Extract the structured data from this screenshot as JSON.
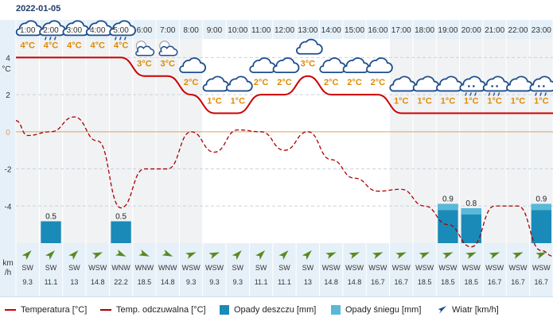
{
  "date": "2022-01-05",
  "hours": [
    "1:00",
    "2:00",
    "3:00",
    "4:00",
    "5:00",
    "6:00",
    "7:00",
    "8:00",
    "9:00",
    "10:00",
    "11:00",
    "12:00",
    "13:00",
    "14:00",
    "15:00",
    "16:00",
    "17:00",
    "18:00",
    "19:00",
    "20:00",
    "21:00",
    "22:00",
    "23:00"
  ],
  "axis": {
    "temp_unit": "°C",
    "temp_ticks": [
      "4",
      "2",
      "0",
      "-2",
      "-4"
    ],
    "wind_unit_top": "km",
    "wind_unit_bottom": "/h"
  },
  "colors": {
    "temperature": "#cc0000",
    "feels_like": "#aa0000",
    "rain": "#1a8ab8",
    "snow": "#5ab8d8",
    "panel": "#e6f0f8",
    "night": "#f0f2f4",
    "zero_line": "#e0a060",
    "temp_label": "#e08a00"
  },
  "chart_data": {
    "type": "line",
    "x": [
      "1:00",
      "2:00",
      "3:00",
      "4:00",
      "5:00",
      "6:00",
      "7:00",
      "8:00",
      "9:00",
      "10:00",
      "11:00",
      "12:00",
      "13:00",
      "14:00",
      "15:00",
      "16:00",
      "17:00",
      "18:00",
      "19:00",
      "20:00",
      "21:00",
      "22:00",
      "23:00"
    ],
    "series": [
      {
        "name": "Temperatura [°C]",
        "values": [
          4,
          4,
          4,
          4,
          4,
          3,
          3,
          2,
          1,
          1,
          2,
          2,
          3,
          2,
          2,
          2,
          1,
          1,
          1,
          1,
          1,
          1,
          1
        ]
      },
      {
        "name": "Temp. odczuwalna [°C]",
        "values": [
          -0.2,
          0,
          0.8,
          -0.5,
          -4.1,
          -2,
          -2,
          0,
          -1.1,
          0.1,
          0,
          -1,
          0,
          -1.5,
          -2.5,
          -3.2,
          -3.1,
          -4,
          -5,
          -6.2,
          -4,
          -4,
          -6.4
        ]
      },
      {
        "name": "Opady deszczu [mm]",
        "values": [
          0,
          0.5,
          0,
          0,
          0.5,
          0,
          0,
          0,
          0,
          0,
          0,
          0,
          0,
          0,
          0,
          0,
          0,
          0,
          0.9,
          0.8,
          0,
          0,
          0.9
        ]
      },
      {
        "name": "Opady śniegu [mm]",
        "values": [
          0,
          0,
          0,
          0,
          0,
          0,
          0,
          0,
          0,
          0,
          0,
          0,
          0,
          0,
          0,
          0,
          0,
          0,
          0.9,
          0.8,
          0,
          0,
          0.9
        ]
      }
    ],
    "ylim": [
      -6,
      5
    ],
    "temp_labels": [
      "4°C",
      "4°C",
      "4°C",
      "4°C",
      "4°C",
      "3°C",
      "3°C",
      "2°C",
      "1°C",
      "1°C",
      "2°C",
      "2°C",
      "3°C",
      "2°C",
      "2°C",
      "2°C",
      "1°C",
      "1°C",
      "1°C",
      "1°C",
      "1°C",
      "1°C",
      "1°C"
    ],
    "precip_labels": [
      "",
      "0.5",
      "",
      "",
      "0.5",
      "",
      "",
      "",
      "",
      "",
      "",
      "",
      "",
      "",
      "",
      "",
      "",
      "",
      "0.9",
      "0.8",
      "",
      "",
      "0.9"
    ],
    "weather_icons": [
      "cloud",
      "cloud-rain",
      "cloud",
      "cloud",
      "cloud-rain",
      "partly-cloudy-night",
      "partly-cloudy-night",
      "cloud",
      "cloud",
      "cloud",
      "cloud",
      "cloud",
      "cloud",
      "cloud",
      "cloud",
      "cloud",
      "cloud",
      "cloud",
      "cloud",
      "cloud-rain-snow",
      "cloud-rain-snow",
      "cloud",
      "cloud-rain-snow"
    ],
    "wind_dir": [
      "SW",
      "SW",
      "SW",
      "WSW",
      "WNW",
      "WNW",
      "WNW",
      "WSW",
      "WSW",
      "SW",
      "SW",
      "SW",
      "SW",
      "WSW",
      "WSW",
      "WSW",
      "WSW",
      "WSW",
      "WSW",
      "WSW",
      "WSW",
      "WSW",
      "WSW"
    ],
    "wind_bearing": [
      225,
      225,
      225,
      248,
      293,
      293,
      293,
      248,
      248,
      225,
      225,
      225,
      225,
      248,
      248,
      248,
      248,
      248,
      248,
      248,
      248,
      248,
      248
    ],
    "wind_speed": [
      "9.3",
      "11.1",
      "13",
      "14.8",
      "22.2",
      "18.5",
      "14.8",
      "9.3",
      "9.3",
      "9.3",
      "11.1",
      "11.1",
      "13",
      "14.8",
      "14.8",
      "16.7",
      "16.7",
      "18.5",
      "18.5",
      "18.5",
      "16.7",
      "16.7",
      "16.7"
    ]
  },
  "legend": {
    "temperature": "Temperatura [°C]",
    "feels_like": "Temp. odczuwalna [°C]",
    "rain": "Opady deszczu [mm]",
    "snow": "Opady śniegu [mm]",
    "wind": "Wiatr [km/h]"
  }
}
